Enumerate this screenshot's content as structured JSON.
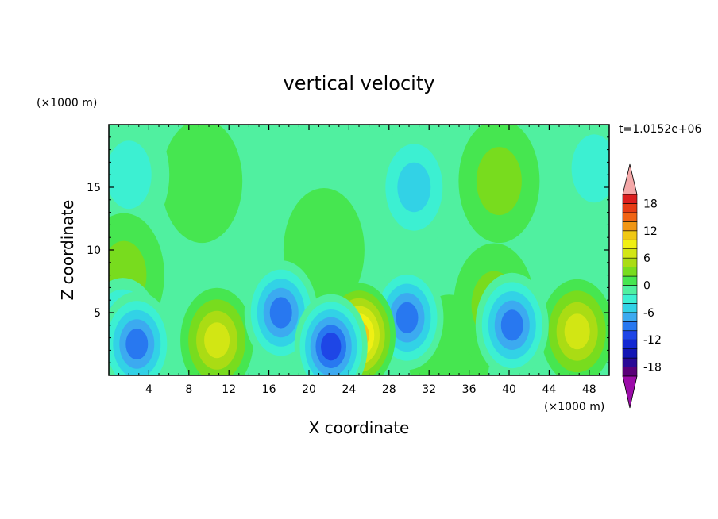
{
  "chart_data": {
    "type": "heatmap",
    "title": "vertical velocity",
    "xlabel": "X coordinate",
    "ylabel": "Z coordinate",
    "x_unit": "(×1000 m)",
    "y_unit": "(×1000 m)",
    "time_label": "t=1.0152e+06",
    "xlim": [
      0,
      50
    ],
    "ylim": [
      0,
      20
    ],
    "x_ticks": [
      4,
      8,
      12,
      16,
      20,
      24,
      28,
      32,
      36,
      40,
      44,
      48
    ],
    "x_tick_labels": [
      "4",
      "8",
      "12",
      "16",
      "20",
      "24",
      "28",
      "32",
      "36",
      "40",
      "44",
      "48"
    ],
    "y_ticks": [
      5,
      10,
      15
    ],
    "y_tick_labels": [
      "5",
      "10",
      "15"
    ],
    "colorbar": {
      "levels": [
        -20,
        -18,
        -16,
        -14,
        -12,
        -10,
        -8,
        -6,
        -4,
        -2,
        0,
        2,
        4,
        6,
        8,
        10,
        12,
        14,
        16,
        18,
        20
      ],
      "tick_labels": [
        "-18",
        "-12",
        "-6",
        "0",
        "6",
        "12",
        "18"
      ],
      "tick_values": [
        -18,
        -12,
        -6,
        0,
        6,
        12,
        18
      ],
      "colors": [
        "#5a0078",
        "#2a0a96",
        "#1416b4",
        "#1428d2",
        "#1e46e6",
        "#2878f0",
        "#3caaf0",
        "#32d2e6",
        "#3cf0d2",
        "#50f0a0",
        "#46e650",
        "#78dc1e",
        "#aadc14",
        "#d2e614",
        "#f0f014",
        "#f0c814",
        "#f09614",
        "#f06414",
        "#e63c14",
        "#dc1e1e"
      ],
      "under_color": "#9b0ca8",
      "over_color": "#f4a8a8"
    },
    "features": [
      {
        "x": 10.8,
        "z": 2.8,
        "value": 8
      },
      {
        "x": 25.0,
        "z": 3.2,
        "value": 12
      },
      {
        "x": 46.8,
        "z": 3.5,
        "value": 8
      },
      {
        "x": 22.2,
        "z": 2.3,
        "value": -12
      },
      {
        "x": 40.3,
        "z": 4.0,
        "value": -10
      },
      {
        "x": 29.8,
        "z": 4.6,
        "value": -10
      },
      {
        "x": 17.2,
        "z": 5.0,
        "value": -9
      },
      {
        "x": 2.8,
        "z": 2.5,
        "value": -10
      },
      {
        "x": 1.4,
        "z": 3.6,
        "value": -8
      },
      {
        "x": 30.5,
        "z": 15.0,
        "value": -6
      },
      {
        "x": 9.3,
        "z": 15.5,
        "value": 2
      },
      {
        "x": 39.0,
        "z": 15.5,
        "value": 4
      },
      {
        "x": 21.5,
        "z": 10.0,
        "value": 2
      },
      {
        "x": 2.0,
        "z": 16.0,
        "value": -3
      },
      {
        "x": 48.5,
        "z": 16.5,
        "value": -3
      },
      {
        "x": 1.5,
        "z": 8.0,
        "value": 3
      },
      {
        "x": 34.0,
        "z": 1.5,
        "value": 2
      },
      {
        "x": 38.5,
        "z": 5.6,
        "value": 3
      }
    ]
  }
}
